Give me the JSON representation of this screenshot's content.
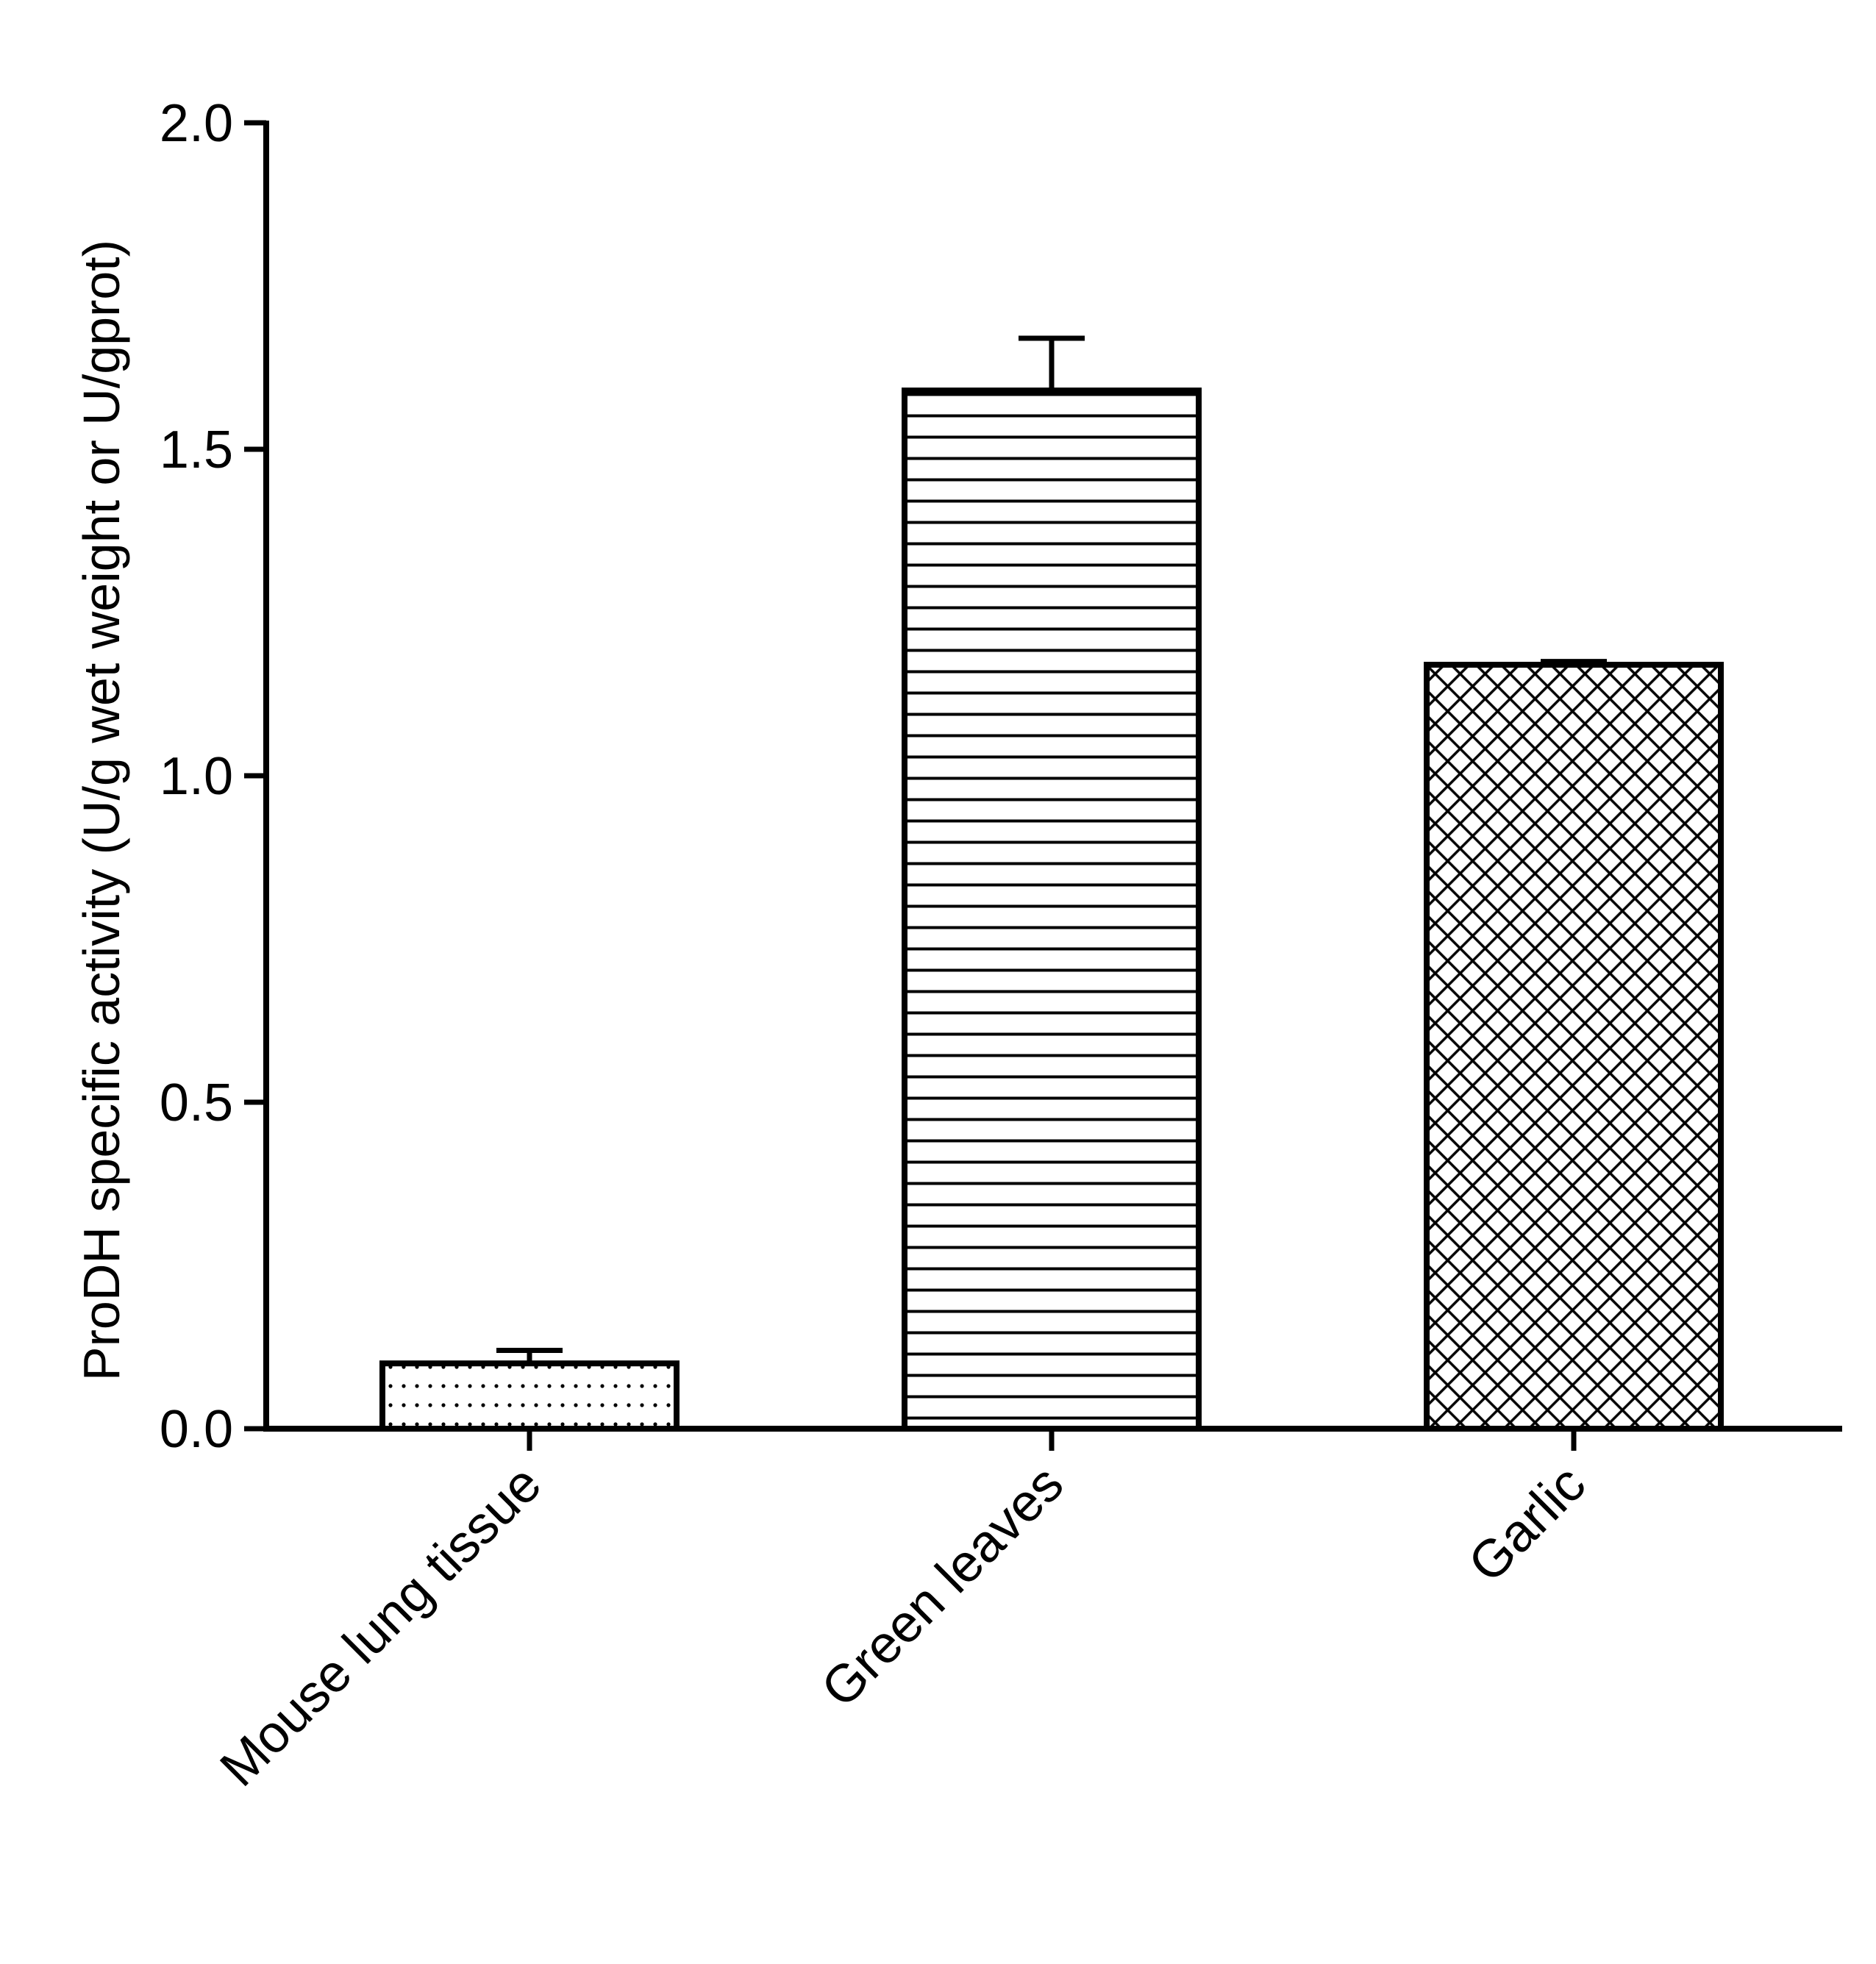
{
  "chart_data": {
    "type": "bar",
    "title": "",
    "xlabel": "",
    "ylabel": "ProDH specific activity (U/g wet weight or U/gprot)",
    "categories": [
      "Mouse lung tissue",
      "Green leaves",
      "Garlic"
    ],
    "values": [
      0.1,
      1.59,
      1.17
    ],
    "error_upper": [
      0.02,
      0.08,
      0.005
    ],
    "patterns": [
      "dots",
      "horizontal-lines",
      "crosshatch"
    ],
    "ylim": [
      0.0,
      2.0
    ],
    "yticks": [
      0.0,
      0.5,
      1.0,
      1.5,
      2.0
    ],
    "ytick_labels": [
      "0.0",
      "0.5",
      "1.0",
      "1.5",
      "2.0"
    ],
    "grid": false,
    "legend": "none",
    "colors": {
      "bar_fill": "#ffffff",
      "stroke": "#000000"
    }
  }
}
